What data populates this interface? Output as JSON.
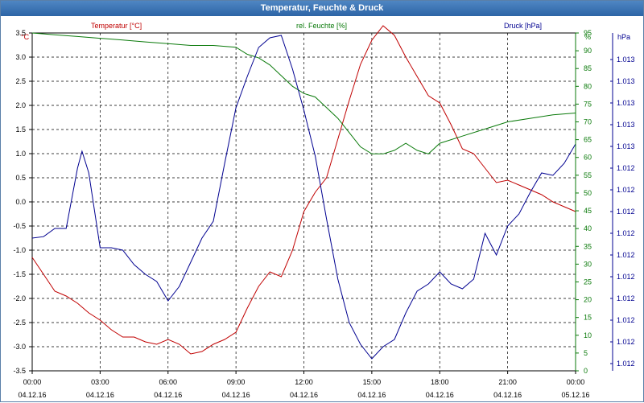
{
  "window": {
    "title": "Temperatur, Feuchte & Druck"
  },
  "colors": {
    "temperature": "#c00000",
    "humidity": "#0a7a0a",
    "pressure": "#000090",
    "grid": "#000000",
    "text": "#000000"
  },
  "chart_data": {
    "type": "line",
    "title": "Temperatur, Feuchte & Druck",
    "x_range_hours": [
      0,
      24
    ],
    "x_ticks": [
      {
        "time": "00:00",
        "date": "04.12.16",
        "hour": 0
      },
      {
        "time": "03:00",
        "date": "04.12.16",
        "hour": 3
      },
      {
        "time": "06:00",
        "date": "04.12.16",
        "hour": 6
      },
      {
        "time": "09:00",
        "date": "04.12.16",
        "hour": 9
      },
      {
        "time": "12:00",
        "date": "04.12.16",
        "hour": 12
      },
      {
        "time": "15:00",
        "date": "04.12.16",
        "hour": 15
      },
      {
        "time": "18:00",
        "date": "04.12.16",
        "hour": 18
      },
      {
        "time": "21:00",
        "date": "04.12.16",
        "hour": 21
      },
      {
        "time": "00:00",
        "date": "05.12.16",
        "hour": 24
      }
    ],
    "axes": {
      "temperature": {
        "unit": "°C",
        "min": -3.5,
        "max": 3.5,
        "ticks": [
          "3.5",
          "3.0",
          "2.5",
          "2.0",
          "1.5",
          "1.0",
          "0.5",
          "0.0",
          "-0.5",
          "-1.0",
          "-1.5",
          "-2.0",
          "-2.5",
          "-3.0",
          "-3.5"
        ]
      },
      "humidity": {
        "unit": "%",
        "min": 0,
        "max": 95,
        "ticks": [
          "95",
          "90",
          "85",
          "80",
          "75",
          "70",
          "65",
          "60",
          "55",
          "50",
          "45",
          "40",
          "35",
          "30",
          "25",
          "20",
          "15",
          "10",
          "5",
          "0"
        ]
      },
      "pressure": {
        "unit": "hPa",
        "ticks": [
          "1.013",
          "1.013",
          "1.013",
          "1.013",
          "1.013",
          "1.012",
          "1.012",
          "1.012",
          "1.012",
          "1.012",
          "1.012",
          "1.012",
          "1.012",
          "1.012",
          "1.012"
        ]
      }
    },
    "series": [
      {
        "name": "Temperatur [°C]",
        "axis": "temperature",
        "x": [
          0,
          0.5,
          1,
          1.5,
          2,
          2.5,
          3,
          3.5,
          4,
          4.5,
          5,
          5.5,
          6,
          6.5,
          7,
          7.5,
          8,
          8.5,
          9,
          9.5,
          10,
          10.5,
          11,
          11.5,
          12,
          12.5,
          13,
          13.5,
          14,
          14.5,
          15,
          15.5,
          16,
          16.5,
          17,
          17.5,
          18,
          18.5,
          19,
          19.5,
          20,
          20.5,
          21,
          21.5,
          22,
          22.5,
          23,
          23.5,
          24
        ],
        "y": [
          -1.15,
          -1.5,
          -1.85,
          -1.95,
          -2.1,
          -2.3,
          -2.45,
          -2.65,
          -2.8,
          -2.8,
          -2.9,
          -2.95,
          -2.85,
          -2.95,
          -3.15,
          -3.1,
          -2.95,
          -2.85,
          -2.7,
          -2.2,
          -1.75,
          -1.45,
          -1.55,
          -1.0,
          -0.2,
          0.2,
          0.5,
          1.3,
          2.1,
          2.85,
          3.35,
          3.65,
          3.45,
          3.0,
          2.6,
          2.2,
          2.05,
          1.6,
          1.1,
          1.0,
          0.7,
          0.4,
          0.45,
          0.35,
          0.25,
          0.15,
          0.0,
          -0.1,
          -0.2
        ]
      },
      {
        "name": "rel. Feuchte [%]",
        "axis": "humidity",
        "x": [
          0,
          1,
          2,
          3,
          4,
          5,
          6,
          7,
          8,
          9,
          9.5,
          10,
          10.5,
          11,
          11.5,
          12,
          12.5,
          13,
          13.5,
          14,
          14.5,
          15,
          15.5,
          16,
          16.5,
          17,
          17.5,
          18,
          19,
          20,
          21,
          22,
          23,
          24
        ],
        "y": [
          95,
          94.5,
          94,
          93.5,
          93,
          92.5,
          92,
          91.5,
          91.5,
          91,
          89,
          88,
          86,
          83,
          80,
          78,
          77,
          74,
          71,
          67,
          63,
          61,
          61,
          62,
          64,
          62,
          61,
          64,
          66,
          68,
          70,
          71,
          72,
          72.5
        ]
      },
      {
        "name": "Druck [hPa]",
        "axis": "pressure",
        "x": [
          0,
          0.5,
          1,
          1.5,
          2,
          2.2,
          2.5,
          3,
          3.5,
          4,
          4.5,
          5,
          5.5,
          6,
          6.5,
          7,
          7.5,
          8,
          8.5,
          9,
          9.5,
          10,
          10.5,
          11,
          11.5,
          12,
          12.5,
          13,
          13.5,
          14,
          14.5,
          15,
          15.5,
          16,
          16.5,
          17,
          17.5,
          18,
          18.5,
          19,
          19.5,
          20,
          20.5,
          21,
          21.5,
          22,
          22.5,
          23,
          23.5,
          24
        ],
        "y": [
          -0.75,
          -0.72,
          -0.55,
          -0.55,
          0.7,
          1.05,
          0.6,
          -0.95,
          -0.95,
          -1.0,
          -1.3,
          -1.5,
          -1.65,
          -2.05,
          -1.75,
          -1.25,
          -0.75,
          -0.4,
          0.8,
          1.95,
          2.6,
          3.2,
          3.4,
          3.45,
          2.75,
          1.9,
          0.95,
          -0.35,
          -1.6,
          -2.5,
          -2.95,
          -3.25,
          -3.0,
          -2.85,
          -2.3,
          -1.85,
          -1.7,
          -1.45,
          -1.7,
          -1.8,
          -1.6,
          -0.65,
          -1.1,
          -0.5,
          -0.25,
          0.2,
          0.6,
          0.55,
          0.8,
          1.2
        ]
      }
    ],
    "legend": [
      "Temperatur [°C]",
      "rel. Feuchte [%]",
      "Druck [hPa]"
    ],
    "grid": true
  }
}
